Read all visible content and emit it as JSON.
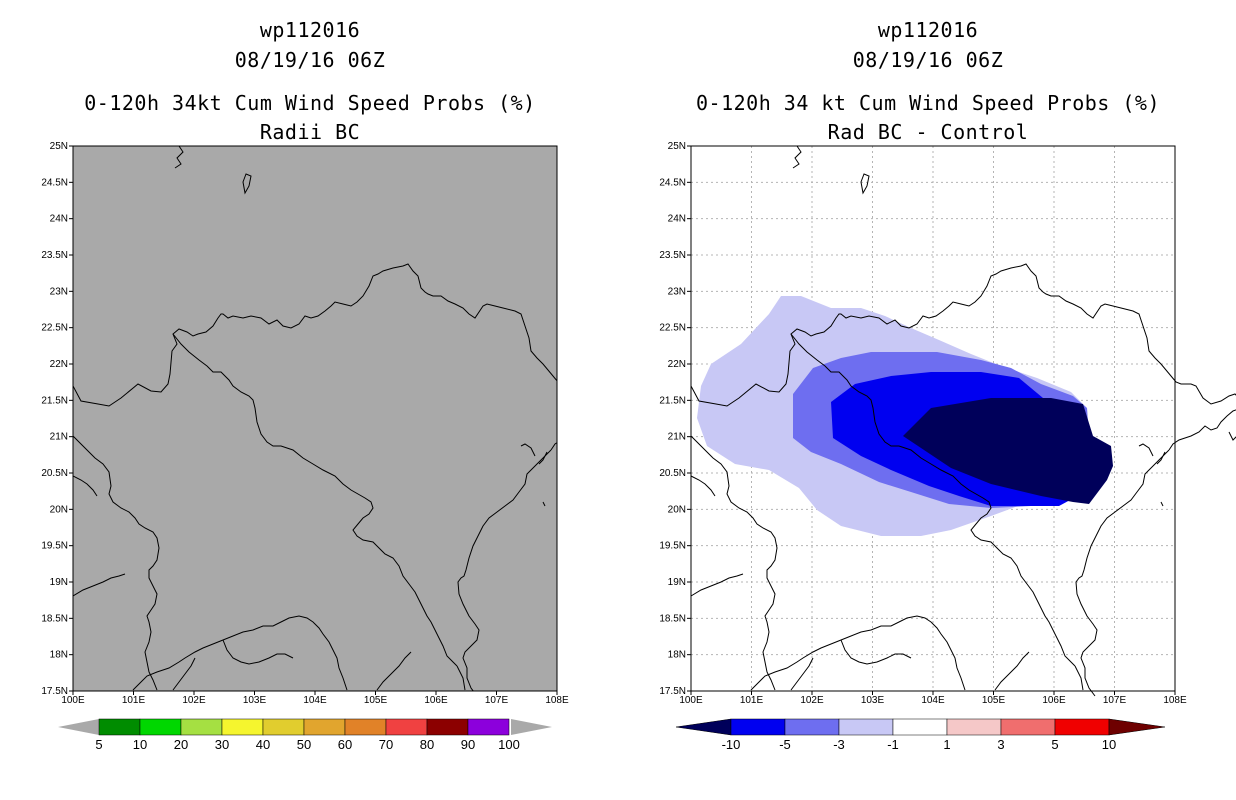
{
  "left_panel": {
    "title_line1": "wp112016",
    "title_line2": "08/19/16 06Z",
    "title_line3": "0-120h 34kt Cum Wind Speed Probs (%)",
    "title_line4": "Radii BC",
    "colorbar_labels": [
      "5",
      "10",
      "20",
      "30",
      "40",
      "50",
      "60",
      "70",
      "80",
      "90",
      "100"
    ],
    "colorbar_colors": [
      "#008c00",
      "#00d700",
      "#a5e042",
      "#f5f52e",
      "#e1cd2e",
      "#e1a52e",
      "#e18228",
      "#f04141",
      "#8c0000",
      "#8c00dc"
    ]
  },
  "right_panel": {
    "title_line1": "wp112016",
    "title_line2": "08/19/16 06Z",
    "title_line3": "0-120h 34 kt Cum Wind Speed Probs (%)",
    "title_line4": "Rad BC - Control",
    "colorbar_labels": [
      "-10",
      "-5",
      "-3",
      "-1",
      "1",
      "3",
      "5",
      "10"
    ],
    "colorbar_colors": [
      "#00005a",
      "#0000f0",
      "#6e6ef0",
      "#c8c8f5",
      "#ffffff",
      "#f5c8c8",
      "#f06e6e",
      "#f00000",
      "#6e0000"
    ]
  },
  "axes": {
    "lat_labels": [
      "25N",
      "24.5N",
      "24N",
      "23.5N",
      "23N",
      "22.5N",
      "22N",
      "21.5N",
      "21N",
      "20.5N",
      "20N",
      "19.5N",
      "19N",
      "18.5N",
      "18N",
      "17.5N"
    ],
    "lon_labels": [
      "100E",
      "101E",
      "102E",
      "103E",
      "104E",
      "105E",
      "106E",
      "107E",
      "108E"
    ],
    "lat_range": [
      17.5,
      25
    ],
    "lon_range": [
      100,
      108
    ]
  },
  "colors": {
    "land_fill_left": "#a9a9a9",
    "grid": "#b4b4b4",
    "level_m1": "#c8c8f5",
    "level_m3": "#6e6ef0",
    "level_m5": "#0000f0",
    "level_m10": "#00005a"
  }
}
